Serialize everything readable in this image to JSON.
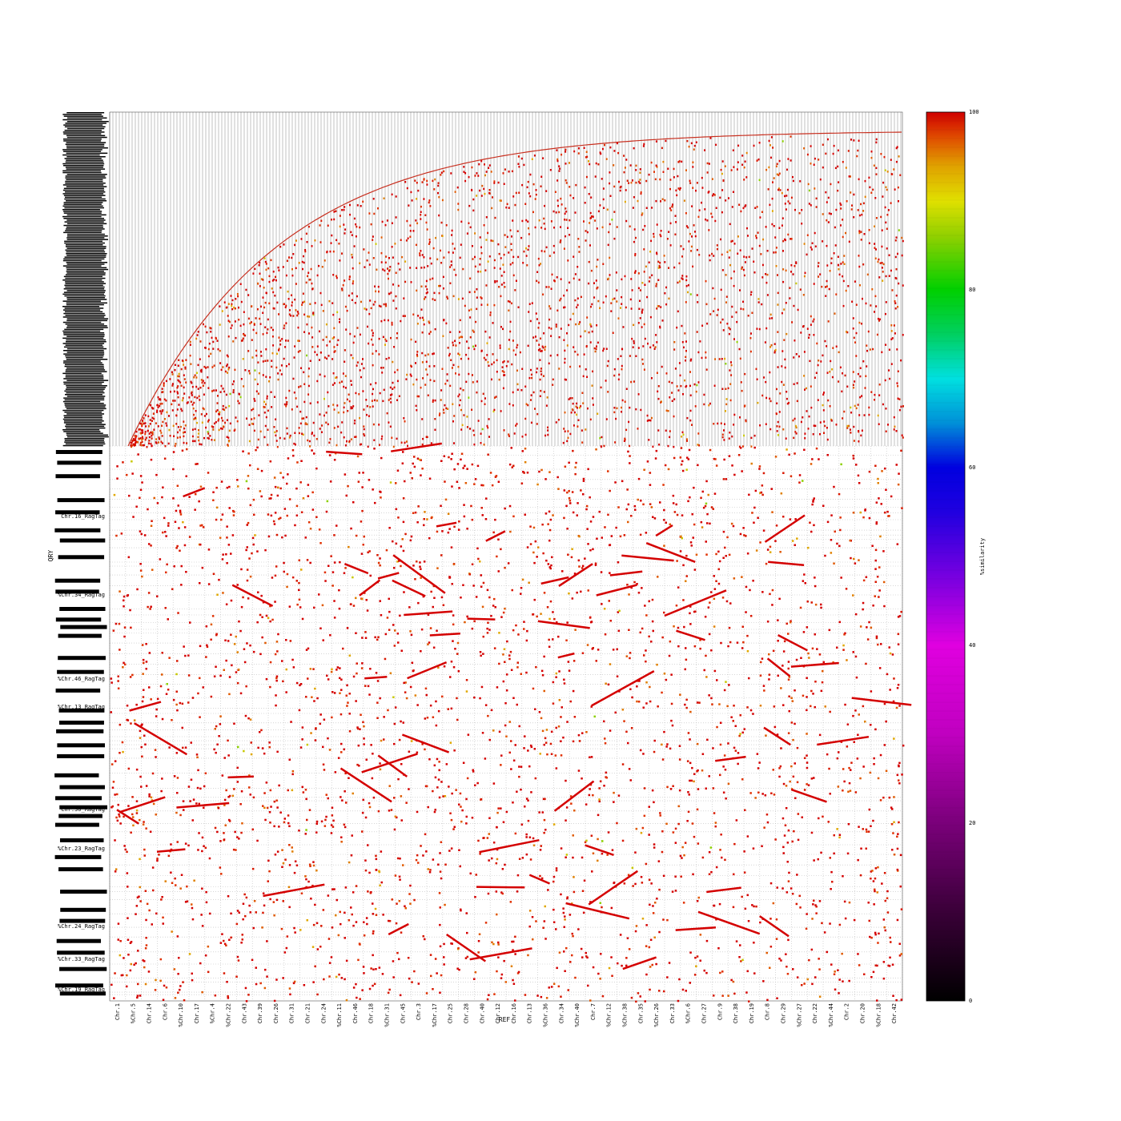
{
  "chart_data": {
    "type": "scatter",
    "subtype": "dot-plot",
    "xlabel": "REF",
    "ylabel": "QRY",
    "x_ticks": [
      "Chr.1",
      "%Chr.5",
      "Chr.14",
      "Chr.6",
      "%Chr.10",
      "Chr.17",
      "%Chr.4",
      "%Chr.22",
      "Chr.43",
      "Chr.39",
      "Chr.26",
      "Chr.31",
      "Chr.21",
      "Chr.24",
      "%Chr.11",
      "Chr.46",
      "Chr.18",
      "%Chr.31",
      "Chr.45",
      "Chr.3",
      "%Chr.17",
      "Chr.25",
      "Chr.28",
      "Chr.40",
      "Chr.12",
      "Chr.16",
      "Chr.13",
      "%Chr.36",
      "Chr.34",
      "%Chr.40",
      "Chr.7",
      "%Chr.12",
      "%Chr.38",
      "Chr.35",
      "%Chr.26",
      "Chr.33",
      "%Chr.6",
      "Chr.27",
      "Chr.9",
      "Chr.38",
      "Chr.19",
      "Chr.8",
      "Chr.29",
      "%Chr.27",
      "Chr.22",
      "%Chr.44",
      "Chr.2",
      "Chr.20",
      "%Chr.18",
      "Chr.42"
    ],
    "y_tick_labels_legible": [
      "Chr.16_RagTag",
      "Chr.30_RagTag",
      "%Chr.23_RagTag",
      "%Chr.34_RagTag",
      "%Chr.24_RagTag",
      "%Chr.33_RagTag",
      "%Chr.19_RagTag",
      "%Chr.46_RagTag",
      "%Chr.13_RagTag"
    ],
    "colorbar": {
      "label": "%similarity",
      "ticks": [
        0,
        20,
        40,
        60,
        80,
        100
      ],
      "range": [
        0,
        100
      ],
      "colors": [
        "#000000",
        "#4a0048",
        "#a000a0",
        "#e000e0",
        "#8000e0",
        "#0000e0",
        "#00a0d0",
        "#00e0e0",
        "#00d000",
        "#70d000",
        "#e0e000",
        "#e0a000",
        "#e05000",
        "#d00000"
      ]
    },
    "note": "Dense whole-genome dot plot; ~50 reference chromosomes (x) vs many query scaffolds (y). Upper region shows many small unplaced query contigs forming a cumulative curve; lower region shows chromosome-scale alignments, mostly at 90–100% similarity (red)."
  }
}
